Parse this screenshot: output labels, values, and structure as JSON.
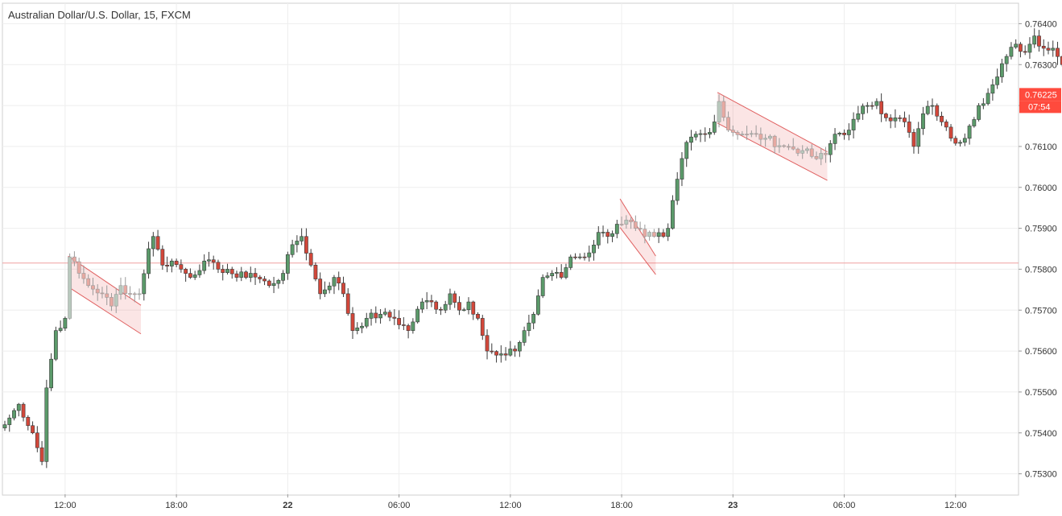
{
  "chart_data": {
    "type": "candlestick",
    "title": "Australian Dollar/U.S. Dollar, 15, FXCM",
    "symbol": "AUDUSD",
    "timeframe": "15",
    "source": "FXCM",
    "ylim": [
      0.7525,
      0.7645
    ],
    "y_ticks": [
      "0.76400",
      "0.76300",
      "0.76200",
      "0.76100",
      "0.76000",
      "0.75900",
      "0.75800",
      "0.75700",
      "0.75600",
      "0.75500",
      "0.75400",
      "0.75300"
    ],
    "x_ticks": [
      {
        "label": "12:00",
        "bar": 13
      },
      {
        "label": "18:00",
        "bar": 37
      },
      {
        "label": "22",
        "bar": 61,
        "bold": true
      },
      {
        "label": "06:00",
        "bar": 85
      },
      {
        "label": "12:00",
        "bar": 109
      },
      {
        "label": "18:00",
        "bar": 133
      },
      {
        "label": "23",
        "bar": 157,
        "bold": true
      },
      {
        "label": "06:00",
        "bar": 181
      },
      {
        "label": "12:00",
        "bar": 205
      }
    ],
    "current_price": "0.76225",
    "countdown": "07:54",
    "horizontal_line": 0.75815,
    "colors": {
      "up": "#5b9a6a",
      "down": "#d2473a",
      "grid": "#eeeeee",
      "marker_bg": "#ff4a3d",
      "hline": "#f0a0a0",
      "channel": "#e06060"
    },
    "channels": [
      {
        "from_bar": 14,
        "to_bar": 29,
        "upper": [
          0.75832,
          0.75712
        ],
        "lower": [
          0.75757,
          0.75642
        ]
      },
      {
        "from_bar": 133,
        "to_bar": 140,
        "upper": [
          0.75972,
          0.75832
        ],
        "lower": [
          0.75902,
          0.75787
        ]
      },
      {
        "from_bar": 154,
        "to_bar": 177,
        "upper": [
          0.76232,
          0.76087
        ],
        "lower": [
          0.76157,
          0.76017
        ]
      }
    ],
    "anchors": [
      [
        0,
        0.7542
      ],
      [
        3,
        0.7547
      ],
      [
        6,
        0.754
      ],
      [
        8,
        0.7533
      ],
      [
        9,
        0.7551
      ],
      [
        11,
        0.7565
      ],
      [
        13,
        0.7568
      ],
      [
        14,
        0.7583
      ],
      [
        16,
        0.7579
      ],
      [
        18,
        0.7576
      ],
      [
        21,
        0.7574
      ],
      [
        23,
        0.7571
      ],
      [
        25,
        0.7576
      ],
      [
        27,
        0.7574
      ],
      [
        29,
        0.7574
      ],
      [
        31,
        0.7585
      ],
      [
        32,
        0.7588
      ],
      [
        34,
        0.7581
      ],
      [
        36,
        0.7582
      ],
      [
        38,
        0.758
      ],
      [
        40,
        0.7578
      ],
      [
        43,
        0.7582
      ],
      [
        46,
        0.758
      ],
      [
        48,
        0.758
      ],
      [
        50,
        0.7578
      ],
      [
        53,
        0.7579
      ],
      [
        57,
        0.7576
      ],
      [
        60,
        0.7579
      ],
      [
        62,
        0.7586
      ],
      [
        64,
        0.7588
      ],
      [
        66,
        0.7581
      ],
      [
        68,
        0.7574
      ],
      [
        71,
        0.7578
      ],
      [
        73,
        0.7574
      ],
      [
        75,
        0.7565
      ],
      [
        78,
        0.7568
      ],
      [
        81,
        0.7569
      ],
      [
        84,
        0.7568
      ],
      [
        87,
        0.7565
      ],
      [
        90,
        0.7572
      ],
      [
        92,
        0.7572
      ],
      [
        94,
        0.757
      ],
      [
        96,
        0.7574
      ],
      [
        98,
        0.757
      ],
      [
        100,
        0.7572
      ],
      [
        102,
        0.7568
      ],
      [
        104,
        0.756
      ],
      [
        106,
        0.7559
      ],
      [
        108,
        0.7559
      ],
      [
        110,
        0.756
      ],
      [
        112,
        0.7565
      ],
      [
        114,
        0.7569
      ],
      [
        116,
        0.7578
      ],
      [
        118,
        0.7579
      ],
      [
        120,
        0.7578
      ],
      [
        122,
        0.7583
      ],
      [
        124,
        0.7583
      ],
      [
        126,
        0.7584
      ],
      [
        128,
        0.7589
      ],
      [
        130,
        0.7588
      ],
      [
        132,
        0.7591
      ],
      [
        134,
        0.7592
      ],
      [
        136,
        0.759
      ],
      [
        138,
        0.7588
      ],
      [
        140,
        0.7588
      ],
      [
        142,
        0.7588
      ],
      [
        143,
        0.759
      ],
      [
        145,
        0.7602
      ],
      [
        147,
        0.7611
      ],
      [
        149,
        0.7613
      ],
      [
        151,
        0.7613
      ],
      [
        153,
        0.7616
      ],
      [
        154,
        0.7621
      ],
      [
        156,
        0.7614
      ],
      [
        160,
        0.7613
      ],
      [
        164,
        0.7612
      ],
      [
        168,
        0.761
      ],
      [
        172,
        0.7609
      ],
      [
        175,
        0.7607
      ],
      [
        177,
        0.7608
      ],
      [
        179,
        0.7613
      ],
      [
        182,
        0.7614
      ],
      [
        184,
        0.7618
      ],
      [
        186,
        0.762
      ],
      [
        188,
        0.7621
      ],
      [
        190,
        0.7617
      ],
      [
        192,
        0.7617
      ],
      [
        194,
        0.7616
      ],
      [
        196,
        0.761
      ],
      [
        198,
        0.7618
      ],
      [
        200,
        0.762
      ],
      [
        202,
        0.7616
      ],
      [
        204,
        0.7612
      ],
      [
        206,
        0.7611
      ],
      [
        208,
        0.7615
      ],
      [
        210,
        0.762
      ],
      [
        212,
        0.7623
      ],
      [
        214,
        0.7627
      ],
      [
        216,
        0.7632
      ],
      [
        218,
        0.7635
      ],
      [
        220,
        0.7633
      ],
      [
        222,
        0.7637
      ],
      [
        224,
        0.7634
      ],
      [
        226,
        0.7634
      ],
      [
        228,
        0.763
      ],
      [
        230,
        0.7627
      ],
      [
        231,
        0.7626
      ],
      [
        232,
        0.76225
      ]
    ]
  }
}
